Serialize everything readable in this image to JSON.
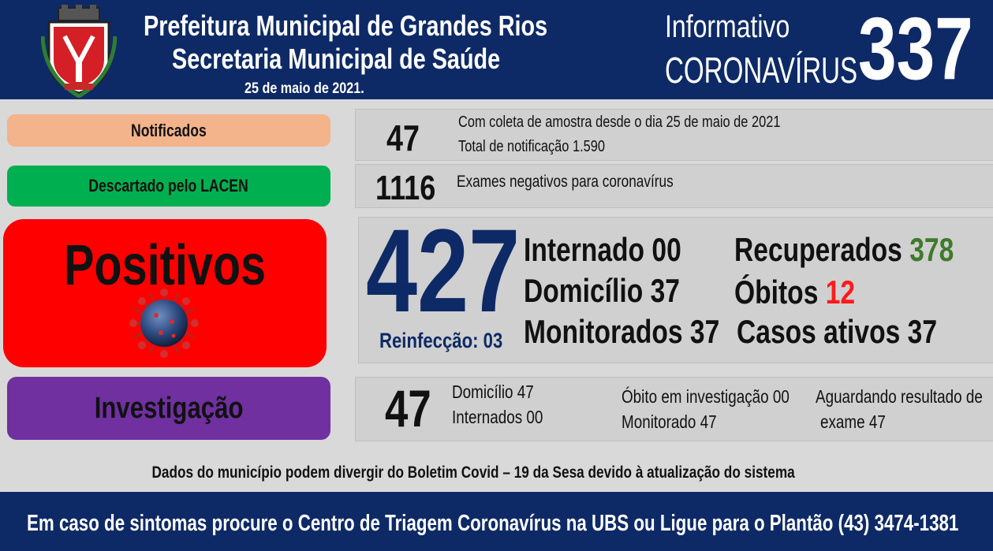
{
  "header": {
    "title_line1": "Prefeitura Municipal de Grandes Rios",
    "title_line2": "Secretaria Municipal de Saúde",
    "date": "25 de maio de 2021.",
    "info_label": "Informativo",
    "corona_label": "CORONAVÍRUS",
    "bulletin_number": "337"
  },
  "notificados": {
    "label": "Notificados",
    "count": "47",
    "line1": "Com coleta de amostra desde o dia 25 de maio de 2021",
    "line2": "Total de notificação 1.590"
  },
  "descartados": {
    "label": "Descartado pelo LACEN",
    "count": "1116",
    "line": "Exames negativos para coronavírus"
  },
  "positivos": {
    "label": "Positivos",
    "count": "427",
    "reinfeccao": "Reinfecção: 03",
    "internado_label": "Internado",
    "internado_value": "00",
    "domicilio_label": "Domicílio",
    "domicilio_value": "37",
    "monitorados_label": "Monitorados",
    "monitorados_value": "37",
    "recuperados_label": "Recuperados",
    "recuperados_value": "378",
    "obitos_label": "Óbitos",
    "obitos_value": "12",
    "ativos_label": "Casos ativos",
    "ativos_value": "37"
  },
  "investigacao": {
    "label": "Investigação",
    "count": "47",
    "domicilio": "Domicílio 47",
    "internados": "Internados 00",
    "obito": "Óbito em investigação 00",
    "monitorado": "Monitorado 47",
    "aguardando_line1": "Aguardando resultado de",
    "aguardando_line2": "exame 47"
  },
  "disclaimer": "Dados do município podem divergir do Boletim Covid – 19 da Sesa devido à atualização do sistema",
  "footer": "Em caso de sintomas procure o Centro de Triagem Coronavírus na UBS ou Ligue para o Plantão (43) 3474-1381",
  "colors": {
    "navy": "#0e2a66",
    "notificados": "#f3b38b",
    "descartados": "#00b050",
    "positivos": "#ff0000",
    "investigacao": "#7030a0",
    "recuperados": "#3f7a2a",
    "obitos": "#ff1a1a"
  },
  "icons": [
    "municipal-crest-icon",
    "coronavirus-icon"
  ]
}
